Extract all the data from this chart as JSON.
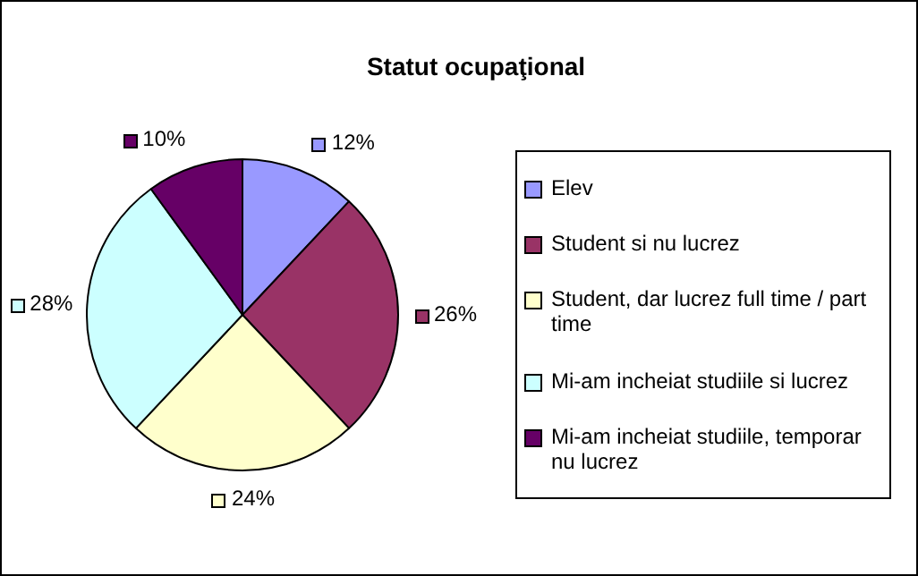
{
  "chart_data": {
    "type": "pie",
    "title": "Statut ocupaţional",
    "legend": "right",
    "categories": [
      "Elev",
      "Student si nu lucrez",
      "Student, dar lucrez full time / part time",
      "Mi-am incheiat studiile si lucrez",
      "Mi-am incheiat studiile, temporar nu lucrez"
    ],
    "values": [
      12,
      26,
      24,
      28,
      10
    ],
    "colors": [
      "#9999ff",
      "#993366",
      "#ffffcc",
      "#ccffff",
      "#660066"
    ],
    "value_labels": [
      "12%",
      "26%",
      "24%",
      "28%",
      "10%"
    ]
  }
}
